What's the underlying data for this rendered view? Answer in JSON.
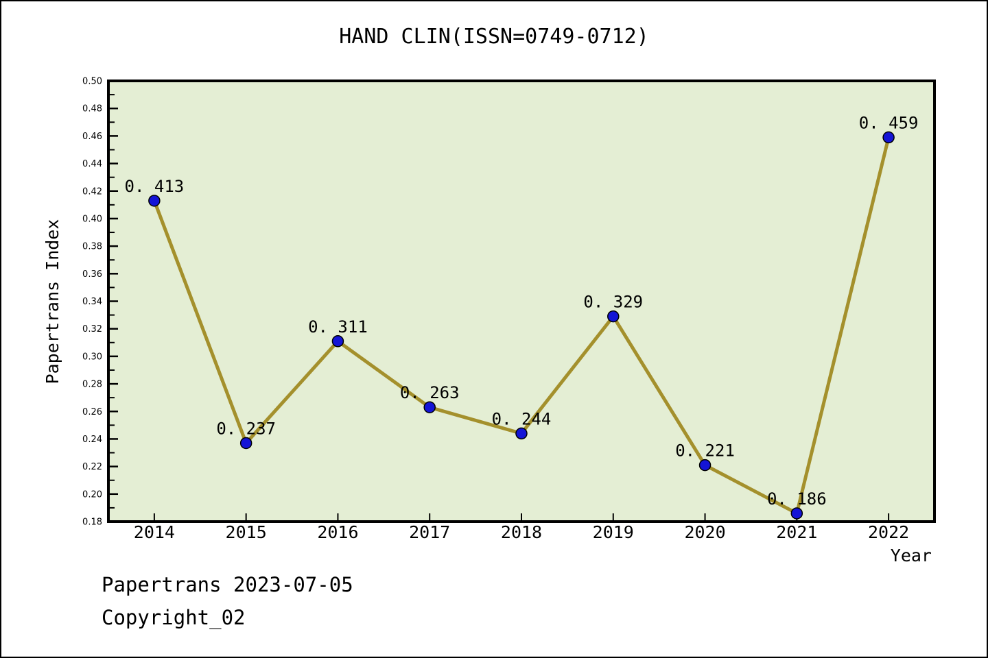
{
  "footer": {
    "line1": "Papertrans 2023-07-05",
    "line2": "Copyright_02"
  },
  "chart_data": {
    "type": "line",
    "title": "HAND CLIN(ISSN=0749-0712)",
    "xlabel": "Year",
    "ylabel": "Papertrans Index",
    "x": [
      2014,
      2015,
      2016,
      2017,
      2018,
      2019,
      2020,
      2021,
      2022
    ],
    "series": [
      {
        "name": "Papertrans Index",
        "values": [
          0.413,
          0.237,
          0.311,
          0.263,
          0.244,
          0.329,
          0.221,
          0.186,
          0.459
        ]
      }
    ],
    "point_labels": [
      "0. 413",
      "0. 237",
      "0. 311",
      "0. 263",
      "0. 244",
      "0. 329",
      "0. 221",
      "0. 186",
      "0. 459"
    ],
    "ylim": [
      0.18,
      0.5
    ],
    "y_major_step": 0.02,
    "y_minor_step": 0.01,
    "x_padding": 0.5,
    "grid": false,
    "legend": "none",
    "colors": {
      "line": "#A4902C",
      "marker_fill": "#1414D6",
      "marker_edge": "#000000",
      "plot_bg": "#E4EED4",
      "axis": "#000000",
      "text": "#000000"
    }
  }
}
